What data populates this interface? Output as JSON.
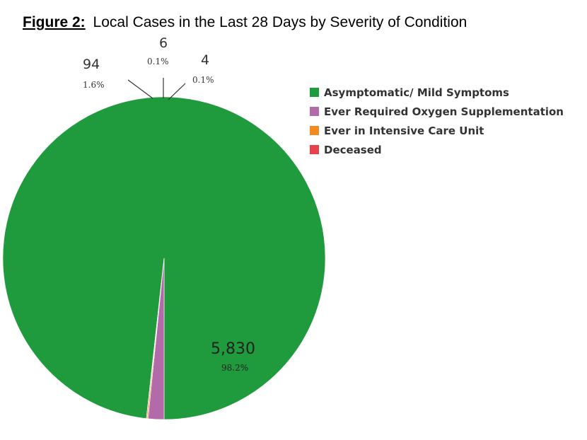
{
  "chart_data": {
    "type": "pie",
    "title_prefix": "Figure 2:",
    "title": "Local Cases in the Last 28 Days by Severity of Condition",
    "slices": [
      {
        "name": "Asymptomatic/ Mild Symptoms",
        "value": 5830,
        "value_label": "5,830",
        "percent_label": "98.2%",
        "color": "#1f9a3c"
      },
      {
        "name": "Ever Required Oxygen Supplementation",
        "value": 94,
        "value_label": "94",
        "percent_label": "1.6%",
        "color": "#b36aa8"
      },
      {
        "name": "Ever in Intensive Care Unit",
        "value": 6,
        "value_label": "6",
        "percent_label": "0.1%",
        "color": "#f28a1f"
      },
      {
        "name": "Deceased",
        "value": 4,
        "value_label": "4",
        "percent_label": "0.1%",
        "color": "#e8424f"
      }
    ],
    "legend_position": "right"
  }
}
